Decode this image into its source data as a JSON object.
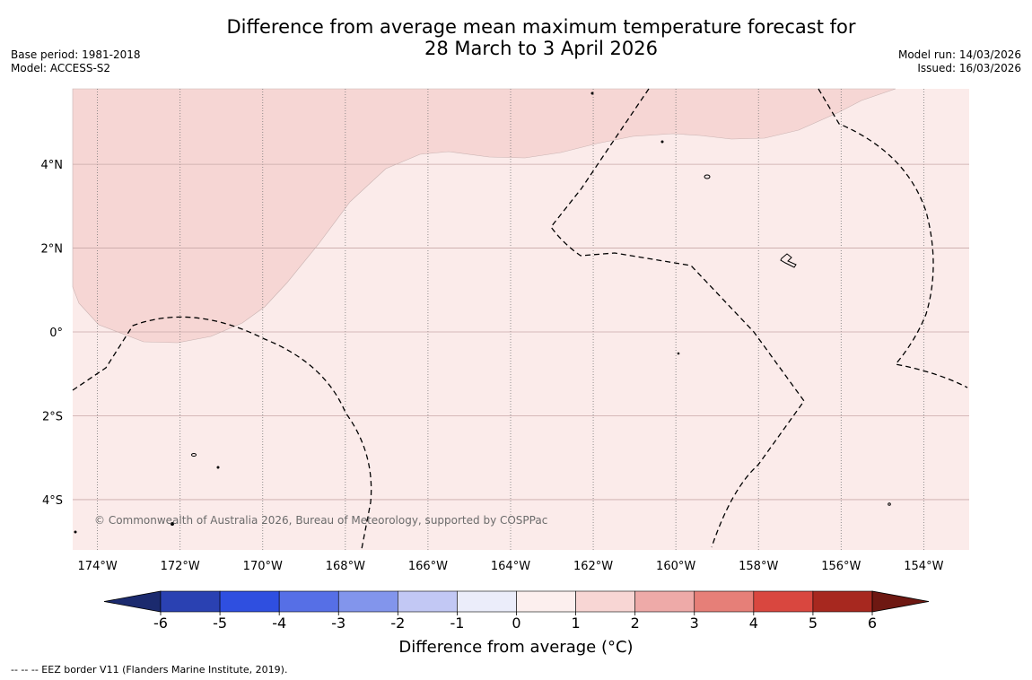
{
  "title": {
    "line1": "Difference from average mean maximum temperature forecast for",
    "line2": "28 March to 3 April 2026"
  },
  "meta_left": {
    "base_period": "Base period: 1981-2018",
    "model": "Model: ACCESS-S2"
  },
  "meta_right": {
    "model_run": "Model run: 14/03/2026",
    "issued": "Issued: 16/03/2026"
  },
  "map": {
    "lon_range": [
      -174.6,
      -152.9
    ],
    "lat_range": [
      -5.2,
      5.8
    ],
    "lon_labels": [
      "174°W",
      "172°W",
      "170°W",
      "168°W",
      "166°W",
      "164°W",
      "162°W",
      "160°W",
      "158°W",
      "156°W",
      "154°W"
    ],
    "lon_values": [
      -174,
      -172,
      -170,
      -168,
      -166,
      -164,
      -162,
      -160,
      -158,
      -156,
      -154
    ],
    "lat_labels": [
      "4°N",
      "2°N",
      "0°",
      "2°S",
      "4°S"
    ],
    "lat_values": [
      4,
      2,
      0,
      -2,
      -4
    ],
    "copyright": "© Commonwealth of Australia 2026, Bureau of Meteorology, supported by COSPPac",
    "fill_colors": {
      "band_0_1": "#fbebea",
      "band_1_2": "#f6d6d4"
    }
  },
  "colorbar": {
    "ticks": [
      "-6",
      "-5",
      "-4",
      "-3",
      "-2",
      "-1",
      "0",
      "1",
      "2",
      "3",
      "4",
      "5",
      "6"
    ],
    "colors": [
      "#1b2a6e",
      "#2a41b2",
      "#2f4fe0",
      "#566fe6",
      "#8295ec",
      "#c2c8f4",
      "#ebedfa",
      "#fcefee",
      "#f8d6d4",
      "#eeaaa8",
      "#e67f78",
      "#d9473f",
      "#a7281f",
      "#6e1812"
    ],
    "label": "Difference from average (°C)"
  },
  "footer": "--  --  -- EEZ border V11 (Flanders Marine Institute, 2019)."
}
